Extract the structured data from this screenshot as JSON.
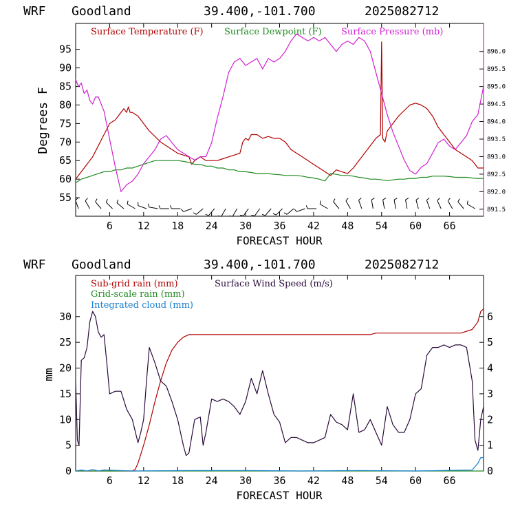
{
  "colors": {
    "temperature": "#b00000",
    "dewpoint": "#1f8a1f",
    "pressure": "#d020d0",
    "subgrid_rain": "#b00000",
    "gridscale_rain": "#1f8a1f",
    "cloud": "#1a7fd0",
    "wind": "#2a0a3a",
    "axis": "#000000"
  },
  "chart_data": [
    {
      "type": "line",
      "header": {
        "model": "WRF",
        "station": "Goodland",
        "coords": "39.400,-101.700",
        "init": "2025082712"
      },
      "title": "",
      "xlabel": "FORECAST HOUR",
      "ylabel": "Degrees F",
      "x_ticks": [
        "6",
        "12",
        "18",
        "24",
        "30",
        "36",
        "42",
        "48",
        "54",
        "60",
        "66"
      ],
      "x_tick_values": [
        6,
        12,
        18,
        24,
        30,
        36,
        42,
        48,
        54,
        60,
        66
      ],
      "xlim": [
        0,
        72
      ],
      "ylim": [
        50,
        102
      ],
      "y_ticks": [
        "55",
        "60",
        "65",
        "70",
        "75",
        "80",
        "85",
        "90",
        "95"
      ],
      "y_tick_values": [
        55,
        60,
        65,
        70,
        75,
        80,
        85,
        90,
        95
      ],
      "y2_ticks": [
        "891.5",
        "892.0",
        "892.5",
        "893.0",
        "893.5",
        "894.0",
        "894.5",
        "895.0",
        "895.5",
        "896.0"
      ],
      "y2_tick_values": [
        891.5,
        892.0,
        892.5,
        893.0,
        893.5,
        894.0,
        894.5,
        895.0,
        895.5,
        896.0
      ],
      "y2lim": [
        891.3,
        896.8
      ],
      "legend": [
        "Surface Temperature (F)",
        "Surface Dewpoint (F)",
        "Surface Pressure (mb)"
      ],
      "series": [
        {
          "name": "Surface Temperature (F)",
          "axis": "left",
          "x": [
            0,
            1,
            2,
            3,
            4,
            5,
            6,
            7,
            8,
            8.5,
            9,
            9.3,
            9.6,
            10,
            11,
            12,
            13,
            14,
            15,
            16,
            17,
            18,
            19,
            20,
            20.5,
            21,
            22,
            23,
            24,
            25,
            26,
            27,
            28,
            29,
            29.5,
            30,
            30.5,
            31,
            32,
            33,
            34,
            35,
            36,
            37,
            38,
            39,
            40,
            41,
            42,
            43,
            44,
            45,
            46,
            47,
            48,
            49,
            50,
            51,
            52,
            53,
            53.8,
            54,
            54.2,
            54.6,
            55,
            56,
            57,
            58,
            59,
            60,
            61,
            62,
            63,
            64,
            65,
            66,
            67,
            68,
            69,
            70,
            71,
            72
          ],
          "y": [
            60,
            62,
            64,
            66,
            69,
            72,
            75,
            76,
            78,
            79,
            78,
            79.5,
            78,
            78,
            77,
            75,
            73,
            71.5,
            70,
            69,
            68,
            67,
            66.5,
            66,
            64,
            65,
            66,
            65,
            65,
            65,
            65.5,
            66,
            66.5,
            67,
            70,
            71,
            70.5,
            72,
            72,
            71,
            71.5,
            71,
            71,
            70,
            68,
            67,
            66,
            65,
            64,
            63,
            62,
            61,
            62.5,
            62,
            61.5,
            63,
            65,
            67,
            69,
            71,
            72,
            97,
            71,
            70,
            73,
            75,
            77,
            78.5,
            80,
            80.5,
            80,
            79,
            77,
            74,
            72,
            70,
            68,
            67,
            66,
            65,
            63,
            63
          ]
        },
        {
          "name": "Surface Dewpoint (F)",
          "axis": "left",
          "x": [
            0,
            1,
            2,
            3,
            4,
            5,
            6,
            7,
            8,
            9,
            10,
            11,
            12,
            13,
            14,
            15,
            16,
            17,
            18,
            19,
            20,
            21,
            22,
            23,
            24,
            25,
            26,
            27,
            28,
            29,
            30,
            31,
            32,
            33,
            34,
            35,
            36,
            37,
            38,
            39,
            40,
            41,
            42,
            43,
            44,
            45,
            46,
            47,
            48,
            49,
            50,
            51,
            52,
            53,
            54,
            55,
            56,
            57,
            58,
            59,
            60,
            61,
            62,
            63,
            64,
            65,
            66,
            67,
            68,
            69,
            70,
            71,
            72
          ],
          "y": [
            59,
            60,
            60.5,
            61,
            61.5,
            62,
            62,
            62.5,
            62.5,
            63,
            63,
            63.5,
            64,
            64.5,
            65,
            65,
            65,
            65,
            65,
            64.8,
            64.5,
            64,
            64,
            63.5,
            63.5,
            63,
            63,
            62.5,
            62.5,
            62,
            62,
            61.8,
            61.5,
            61.5,
            61.5,
            61.3,
            61.2,
            61,
            61,
            61,
            60.8,
            60.5,
            60.3,
            60,
            59.5,
            61.5,
            61.3,
            61,
            61,
            60.8,
            60.5,
            60.3,
            60,
            60,
            59.8,
            59.6,
            59.8,
            60,
            60,
            60.2,
            60.2,
            60.5,
            60.5,
            60.8,
            60.8,
            60.8,
            60.7,
            60.5,
            60.5,
            60.5,
            60.3,
            60.2,
            60.2
          ]
        },
        {
          "name": "Surface Pressure (mb)",
          "axis": "right",
          "x": [
            0,
            0.5,
            1,
            1.5,
            2,
            2.5,
            3,
            3.5,
            4,
            5,
            6,
            7,
            8,
            9,
            10,
            11,
            12,
            13,
            14,
            15,
            16,
            17,
            18,
            19,
            20,
            21,
            22,
            23,
            24,
            25,
            26,
            27,
            28,
            29,
            30,
            31,
            32,
            33,
            34,
            35,
            36,
            37,
            38,
            39,
            40,
            41,
            42,
            43,
            44,
            45,
            46,
            47,
            48,
            49,
            50,
            51,
            52,
            53,
            54,
            55,
            56,
            57,
            58,
            59,
            60,
            61,
            62,
            63,
            64,
            65,
            66,
            67,
            68,
            69,
            70,
            71,
            72
          ],
          "y": [
            895.2,
            895.0,
            895.1,
            894.8,
            894.9,
            894.6,
            894.5,
            894.7,
            894.7,
            894.3,
            893.5,
            892.7,
            892.0,
            892.2,
            892.3,
            892.5,
            892.8,
            893.0,
            893.2,
            893.5,
            893.6,
            893.4,
            893.2,
            893.1,
            893.0,
            892.9,
            893.0,
            893.0,
            893.4,
            894.1,
            894.7,
            895.4,
            895.7,
            895.8,
            895.6,
            895.7,
            895.8,
            895.5,
            895.8,
            895.7,
            895.8,
            896.0,
            896.3,
            896.5,
            896.4,
            896.3,
            896.4,
            896.3,
            896.4,
            896.2,
            896.0,
            896.2,
            896.3,
            896.2,
            896.4,
            896.3,
            896.0,
            895.4,
            894.8,
            894.2,
            893.7,
            893.3,
            892.9,
            892.6,
            892.5,
            892.7,
            892.8,
            893.1,
            893.4,
            893.5,
            893.3,
            893.2,
            893.4,
            893.6,
            894.0,
            894.2,
            895.0
          ]
        }
      ]
    },
    {
      "type": "line",
      "header": {
        "model": "WRF",
        "station": "Goodland",
        "coords": "39.400,-101.700",
        "init": "2025082712"
      },
      "title": "",
      "xlabel": "FORECAST HOUR",
      "ylabel": "mm",
      "x_ticks": [
        "6",
        "12",
        "18",
        "24",
        "30",
        "36",
        "42",
        "48",
        "54",
        "60",
        "66"
      ],
      "x_tick_values": [
        6,
        12,
        18,
        24,
        30,
        36,
        42,
        48,
        54,
        60,
        66
      ],
      "xlim": [
        0,
        72
      ],
      "ylim": [
        0,
        38
      ],
      "y_ticks": [
        "0",
        "5",
        "10",
        "15",
        "20",
        "25",
        "30"
      ],
      "y_tick_values": [
        0,
        5,
        10,
        15,
        20,
        25,
        30
      ],
      "y2_ticks": [
        "0",
        "1",
        "2",
        "3",
        "4",
        "5",
        "6"
      ],
      "y2_tick_values": [
        0,
        1,
        2,
        3,
        4,
        5,
        6
      ],
      "y2lim": [
        0,
        7.6
      ],
      "legend": [
        "Sub-grid rain (mm)",
        "Grid-scale rain (mm)",
        "Integrated cloud (mm)",
        "Surface Wind Speed (m/s)"
      ],
      "series": [
        {
          "name": "Sub-grid rain (mm)",
          "axis": "left",
          "x": [
            0,
            10,
            10.5,
            11,
            12,
            13,
            14,
            15,
            16,
            17,
            18,
            19,
            20,
            21,
            30,
            40,
            50,
            52,
            53,
            60,
            68,
            70,
            71,
            71.5,
            72
          ],
          "y": [
            0,
            0,
            0.3,
            1.5,
            5,
            9,
            13.5,
            17.5,
            21,
            23.5,
            25,
            26,
            26.5,
            26.5,
            26.5,
            26.5,
            26.5,
            26.5,
            26.8,
            26.8,
            26.8,
            27.5,
            29,
            31,
            31.5
          ]
        },
        {
          "name": "Grid-scale rain (mm)",
          "axis": "left",
          "x": [
            0,
            72
          ],
          "y": [
            0,
            0
          ]
        },
        {
          "name": "Integrated cloud (mm)",
          "axis": "left",
          "x": [
            0,
            1,
            2,
            3,
            4,
            5,
            10,
            20,
            30,
            40,
            50,
            60,
            70,
            71,
            71.5,
            72
          ],
          "y": [
            0,
            0.2,
            0,
            0.3,
            0,
            0.2,
            0,
            0.1,
            0.1,
            0,
            0.1,
            0,
            0.2,
            1.5,
            2.6,
            2.6
          ]
        },
        {
          "name": "Surface Wind Speed (m/s)",
          "axis": "right",
          "x": [
            0,
            0.3,
            0.6,
            1,
            1.5,
            2,
            2.5,
            3,
            3.5,
            4,
            4.5,
            5,
            5.5,
            6,
            7,
            8,
            9,
            10,
            11,
            11.5,
            12,
            12.5,
            13,
            13.5,
            14,
            15,
            16,
            17,
            18,
            19,
            19.5,
            20,
            21,
            22,
            22.5,
            23,
            24,
            25,
            26,
            27,
            28,
            29,
            30,
            31,
            32,
            33,
            34,
            35,
            36,
            37,
            38,
            39,
            40,
            41,
            42,
            43,
            44,
            45,
            46,
            47,
            48,
            49,
            50,
            51,
            52,
            53,
            54,
            55,
            56,
            57,
            58,
            59,
            60,
            61,
            62,
            63,
            64,
            65,
            66,
            67,
            68,
            69,
            70,
            70.5,
            71,
            71.5,
            72
          ],
          "y": [
            3.5,
            1.2,
            1.0,
            4.3,
            4.4,
            4.8,
            5.8,
            6.2,
            6.0,
            5.4,
            5.2,
            5.3,
            4.2,
            3.0,
            3.1,
            3.1,
            2.4,
            2.0,
            1.1,
            1.5,
            2.0,
            3.5,
            4.8,
            4.5,
            4.2,
            3.5,
            3.3,
            2.7,
            2.0,
            1.0,
            0.6,
            0.7,
            2.0,
            2.1,
            1.0,
            1.5,
            2.8,
            2.7,
            2.8,
            2.7,
            2.5,
            2.2,
            2.7,
            3.6,
            3.0,
            3.9,
            3.0,
            2.2,
            1.9,
            1.1,
            1.3,
            1.3,
            1.2,
            1.1,
            1.1,
            1.2,
            1.3,
            2.2,
            1.9,
            1.8,
            1.6,
            3.0,
            1.5,
            1.6,
            2.0,
            1.5,
            1.0,
            2.5,
            1.8,
            1.5,
            1.5,
            2.0,
            3.0,
            3.2,
            4.5,
            4.8,
            4.8,
            4.9,
            4.8,
            4.9,
            4.9,
            4.8,
            3.5,
            1.2,
            0.8,
            2.0,
            2.5
          ]
        }
      ]
    }
  ],
  "wind_barbs": {
    "x": [
      0.5,
      2.5,
      4.5,
      6.5,
      8.5,
      10.5,
      12.5,
      14.5,
      16.5,
      18.5,
      20.5,
      22.5,
      24.5,
      26.5,
      28.5,
      30.5,
      32.5,
      34.5,
      36.5,
      38.5,
      40.5,
      42.5,
      44.5,
      46.5,
      48.5,
      50.5,
      52.5,
      54.5,
      56.5,
      58.5,
      60.5,
      62.5,
      64.5,
      66.5,
      68.5,
      70.5
    ],
    "dir": [
      340,
      330,
      320,
      315,
      310,
      300,
      290,
      280,
      270,
      270,
      250,
      230,
      220,
      210,
      210,
      215,
      215,
      220,
      225,
      230,
      250,
      270,
      300,
      320,
      330,
      340,
      350,
      350,
      350,
      350,
      345,
      340,
      335,
      330,
      320,
      300
    ]
  }
}
